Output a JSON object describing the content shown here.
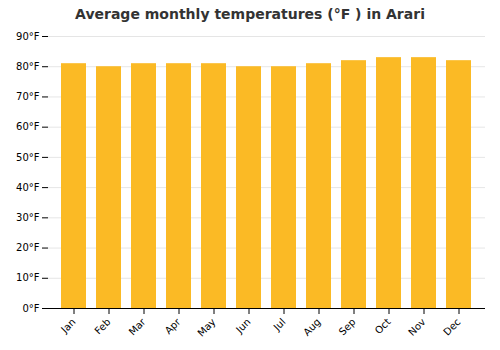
{
  "chart_data": {
    "type": "bar",
    "title": "Average monthly temperatures (°F ) in Arari",
    "categories": [
      "Jan",
      "Feb",
      "Mar",
      "Apr",
      "May",
      "Jun",
      "Jul",
      "Aug",
      "Sep",
      "Oct",
      "Nov",
      "Dec"
    ],
    "values": [
      81,
      80,
      81,
      81,
      81,
      80,
      80,
      81,
      82,
      83,
      83,
      82
    ],
    "color": "#FBBA25",
    "ylim": [
      0,
      90
    ],
    "yticks": [
      {
        "value": 0,
        "label": "0°F"
      },
      {
        "value": 10,
        "label": "10°F"
      },
      {
        "value": 20,
        "label": "20°F"
      },
      {
        "value": 30,
        "label": "30°F"
      },
      {
        "value": 40,
        "label": "40°F"
      },
      {
        "value": 50,
        "label": "50°F"
      },
      {
        "value": 60,
        "label": "60°F"
      },
      {
        "value": 70,
        "label": "70°F"
      },
      {
        "value": 80,
        "label": "80°F"
      },
      {
        "value": 90,
        "label": "90°F"
      }
    ],
    "grid": true
  }
}
